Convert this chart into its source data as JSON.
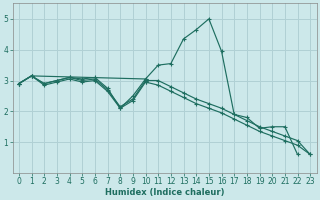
{
  "title": "",
  "xlabel": "Humidex (Indice chaleur)",
  "bg_color": "#cce8ea",
  "grid_color": "#b0d0d4",
  "line_color": "#1e6e60",
  "spine_color": "#888888",
  "xlim": [
    -0.5,
    23.5
  ],
  "ylim": [
    0.0,
    5.5
  ],
  "xticks": [
    0,
    1,
    2,
    3,
    4,
    5,
    6,
    7,
    8,
    9,
    10,
    11,
    12,
    13,
    14,
    15,
    16,
    17,
    18,
    19,
    20,
    21,
    22,
    23
  ],
  "yticks": [
    1,
    2,
    3,
    4,
    5
  ],
  "lines": [
    {
      "x": [
        0,
        1,
        2,
        3,
        4,
        5,
        6,
        7,
        8,
        9,
        10
      ],
      "y": [
        2.9,
        3.15,
        2.9,
        3.0,
        3.1,
        3.05,
        3.1,
        2.75,
        2.1,
        2.5,
        3.05
      ]
    },
    {
      "x": [
        0,
        1,
        2,
        3,
        4,
        5,
        6,
        7,
        8,
        9,
        10
      ],
      "y": [
        2.9,
        3.15,
        2.9,
        3.0,
        3.1,
        3.0,
        3.05,
        2.7,
        2.15,
        2.4,
        3.0
      ]
    },
    {
      "x": [
        0,
        1,
        2,
        3,
        4,
        5,
        6,
        7,
        8,
        9,
        10
      ],
      "y": [
        2.9,
        3.15,
        2.85,
        2.95,
        3.05,
        2.95,
        3.0,
        2.65,
        2.1,
        2.35,
        2.95
      ]
    },
    {
      "x": [
        0,
        1,
        10,
        11,
        12,
        13,
        14,
        15,
        16,
        17,
        18,
        19,
        20,
        21,
        22
      ],
      "y": [
        2.9,
        3.15,
        3.05,
        3.5,
        3.55,
        4.35,
        4.65,
        5.0,
        3.95,
        1.9,
        1.8,
        1.45,
        1.5,
        1.5,
        0.6
      ]
    },
    {
      "x": [
        10,
        11,
        12,
        13,
        14,
        15,
        16,
        17,
        18,
        19,
        20,
        21,
        22,
        23
      ],
      "y": [
        3.0,
        3.0,
        2.8,
        2.6,
        2.4,
        2.25,
        2.1,
        1.9,
        1.7,
        1.5,
        1.35,
        1.2,
        1.05,
        0.6
      ]
    },
    {
      "x": [
        10,
        11,
        12,
        13,
        14,
        15,
        16,
        17,
        18,
        19,
        20,
        21,
        22,
        23
      ],
      "y": [
        2.95,
        2.85,
        2.65,
        2.45,
        2.25,
        2.1,
        1.95,
        1.75,
        1.55,
        1.35,
        1.2,
        1.05,
        0.9,
        0.6
      ]
    }
  ]
}
